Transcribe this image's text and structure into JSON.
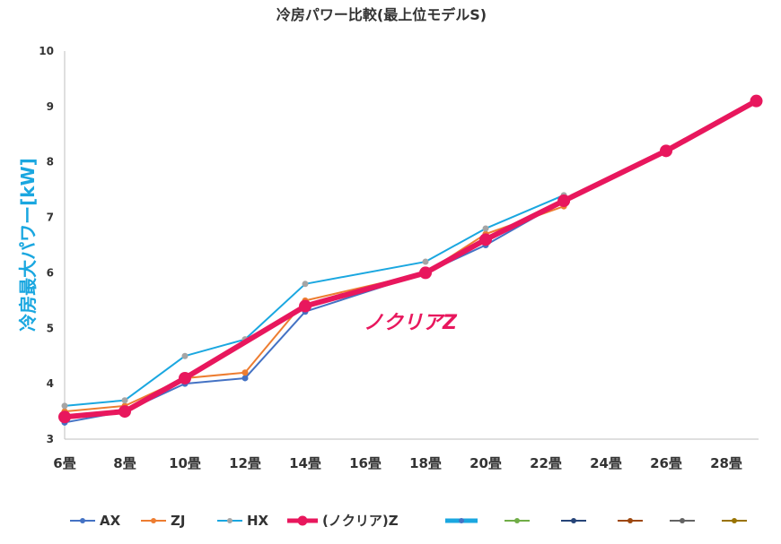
{
  "chart_data": {
    "type": "line",
    "title": "冷房パワー比較(最上位モデルS)",
    "ylabel": "冷房最大パワー[kW]",
    "xlabel": "",
    "ylim": [
      3,
      10
    ],
    "yticks": [
      "3",
      "4",
      "5",
      "6",
      "7",
      "8",
      "9",
      "10"
    ],
    "categories": [
      "6畳",
      "8畳",
      "10畳",
      "12畳",
      "14畳",
      "16畳",
      "18畳",
      "20畳",
      "22畳",
      "24畳",
      "26畳",
      "28畳"
    ],
    "grid": false,
    "legend_position": "bottom",
    "annotation": "ノクリアZ",
    "series": [
      {
        "name": "AX",
        "color": "#4472c4",
        "emphasis": false,
        "points": [
          [
            0,
            3.3
          ],
          [
            1,
            3.5
          ],
          [
            2,
            4.0
          ],
          [
            3,
            4.1
          ],
          [
            4,
            5.3
          ],
          [
            6,
            6.0
          ],
          [
            7,
            6.5
          ],
          [
            8.3,
            7.3
          ]
        ]
      },
      {
        "name": "ZJ",
        "color": "#ed7d31",
        "emphasis": false,
        "points": [
          [
            0,
            3.5
          ],
          [
            1,
            3.6
          ],
          [
            2,
            4.1
          ],
          [
            3,
            4.2
          ],
          [
            4,
            5.5
          ],
          [
            6,
            6.0
          ],
          [
            7,
            6.7
          ],
          [
            8.3,
            7.2
          ]
        ]
      },
      {
        "name": "HX",
        "color": "#a5a5a5",
        "line_color": "#1aa7e0",
        "emphasis": false,
        "points": [
          [
            0,
            3.6
          ],
          [
            1,
            3.7
          ],
          [
            2,
            4.5
          ],
          [
            3,
            4.8
          ],
          [
            4,
            5.8
          ],
          [
            6,
            6.2
          ],
          [
            7,
            6.8
          ],
          [
            8.3,
            7.4
          ]
        ]
      },
      {
        "name": "(ノクリア)Z",
        "color": "#e8175d",
        "emphasis": true,
        "points": [
          [
            0,
            3.4
          ],
          [
            1,
            3.5
          ],
          [
            2,
            4.1
          ],
          [
            4,
            5.4
          ],
          [
            6,
            6.0
          ],
          [
            7,
            6.6
          ],
          [
            8.3,
            7.3
          ],
          [
            10,
            8.2
          ],
          [
            11.5,
            9.1
          ]
        ]
      }
    ],
    "legend_extra_markers": [
      {
        "color": "#1aa7e0",
        "thick": true
      },
      {
        "color": "#70ad47",
        "thick": false
      },
      {
        "color": "#264478",
        "thick": false
      },
      {
        "color": "#9e480e",
        "thick": false
      },
      {
        "color": "#636363",
        "thick": false
      },
      {
        "color": "#997300",
        "thick": false
      }
    ]
  }
}
